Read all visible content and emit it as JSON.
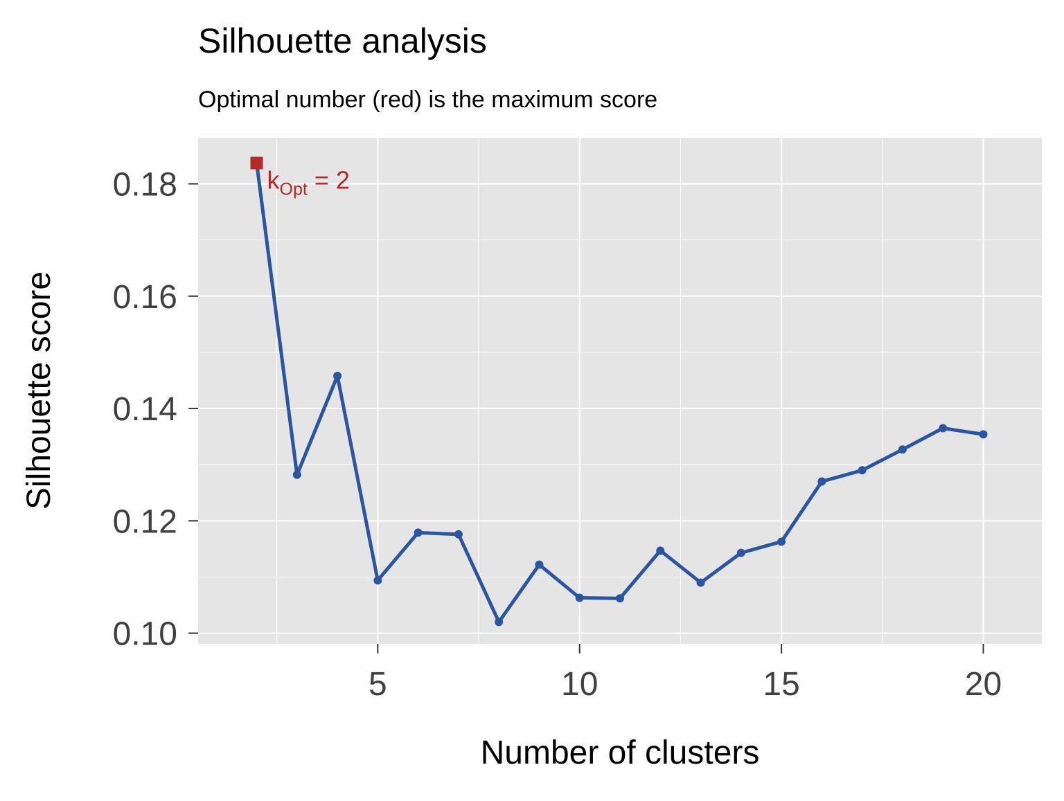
{
  "chart_data": {
    "type": "line",
    "title": "Silhouette analysis",
    "subtitle": "Optimal number (red) is the maximum score",
    "xlabel": "Number of clusters",
    "ylabel": "Silhouette score",
    "x": [
      2,
      3,
      4,
      5,
      6,
      7,
      8,
      9,
      10,
      11,
      12,
      13,
      14,
      15,
      16,
      17,
      18,
      19,
      20
    ],
    "series": [
      {
        "values": [
          0.1837,
          0.1282,
          0.1458,
          0.1094,
          0.1179,
          0.1176,
          0.102,
          0.1122,
          0.1063,
          0.1062,
          0.1147,
          0.109,
          0.1143,
          0.1163,
          0.127,
          0.129,
          0.1327,
          0.1365,
          0.1354
        ],
        "color": "#2a56a0"
      }
    ],
    "optimal": {
      "x": 2,
      "y": 0.1837,
      "label_main": "k",
      "label_sub": "Opt",
      "label_rest": " = 2",
      "color": "#b22b26"
    },
    "xlim": [
      0.55,
      21.45
    ],
    "ylim": [
      0.0981,
      0.1882
    ],
    "xticks": [
      "5",
      "10",
      "15",
      "20"
    ],
    "xtick_values": [
      5,
      10,
      15,
      20
    ],
    "yticks": [
      "0.10",
      "0.12",
      "0.14",
      "0.16",
      "0.18"
    ],
    "ytick_values": [
      0.1,
      0.12,
      0.14,
      0.16,
      0.18
    ],
    "grid": true,
    "minor_grid": true,
    "background": "#e5e5e5",
    "grid_color": "#ffffff"
  }
}
